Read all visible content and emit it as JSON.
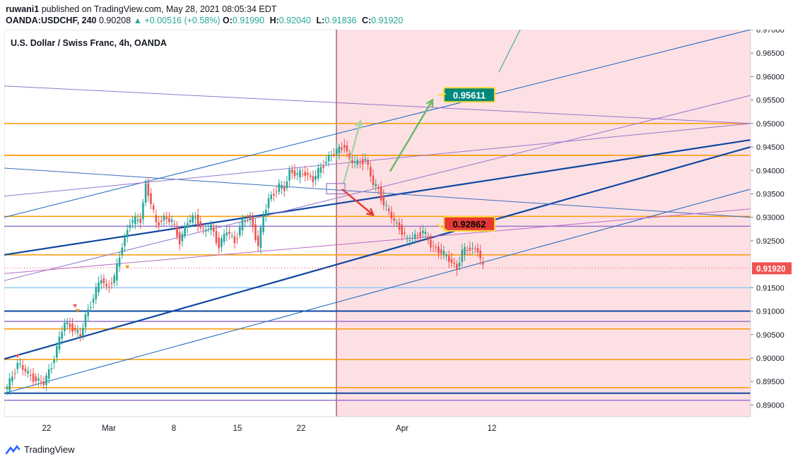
{
  "header": {
    "author": "ruwani1",
    "published_text": "published on TradingView.com, May 28, 2021 08:05:34 EDT",
    "symbol": "OANDA:USDCHF, 240",
    "last": "0.90208",
    "change": "▲ +0.00516 (+0.58%)",
    "open_label": "O:",
    "open": "0.91990",
    "high_label": "H:",
    "high": "0.92040",
    "low_label": "L:",
    "low": "0.91836",
    "close_label": "C:",
    "close": "0.91920"
  },
  "chart_title": "U.S. Dollar / Swiss Franc, 4h, OANDA",
  "footer": {
    "brand": "TradingView"
  },
  "colors": {
    "up": "#26a69a",
    "down": "#ef5350",
    "shade": "#fde0e4",
    "orange": "#ff9800",
    "purple": "#9575cd",
    "navy": "#0d47a1",
    "blue": "#1e5bb5"
  },
  "chart_data": {
    "type": "line",
    "series_kind": "candlestick",
    "ylim": [
      0.8875,
      0.97
    ],
    "y_ticks": [
      "0.97000",
      "0.96500",
      "0.96000",
      "0.95500",
      "0.95000",
      "0.94500",
      "0.94000",
      "0.93500",
      "0.93000",
      "0.92500",
      "0.92000",
      "0.91500",
      "0.91000",
      "0.90500",
      "0.90000",
      "0.89500",
      "0.89000"
    ],
    "x_ticks": [
      "22",
      "Mar",
      "8",
      "15",
      "22",
      "Apr",
      "12"
    ],
    "last_price_label": "0.91920",
    "annotations": [
      {
        "text": "0.95611",
        "value": 0.95611
      },
      {
        "text": "0.92862",
        "value": 0.92862
      }
    ],
    "horizontal_levels": [
      {
        "value": 0.95,
        "color": "orange"
      },
      {
        "value": 0.9432,
        "color": "orange"
      },
      {
        "value": 0.9302,
        "color": "orange"
      },
      {
        "value": 0.9281,
        "color": "purple"
      },
      {
        "value": 0.922,
        "color": "orange"
      },
      {
        "value": 0.915,
        "color": "lightblue"
      },
      {
        "value": 0.91,
        "color": "navy"
      },
      {
        "value": 0.9078,
        "color": "purple"
      },
      {
        "value": 0.9062,
        "color": "orange"
      },
      {
        "value": 0.8997,
        "color": "orange"
      },
      {
        "value": 0.8937,
        "color": "orange"
      },
      {
        "value": 0.8925,
        "color": "navy"
      },
      {
        "value": 0.891,
        "color": "purple"
      }
    ],
    "path": [
      [
        0,
        0.8935
      ],
      [
        4,
        0.899
      ],
      [
        8,
        0.8965
      ],
      [
        11,
        0.8955
      ],
      [
        14,
        0.8945
      ],
      [
        17,
        0.8985
      ],
      [
        20,
        0.904
      ],
      [
        22,
        0.9075
      ],
      [
        25,
        0.9065
      ],
      [
        28,
        0.9045
      ],
      [
        30,
        0.909
      ],
      [
        33,
        0.913
      ],
      [
        36,
        0.917
      ],
      [
        38,
        0.915
      ],
      [
        41,
        0.917
      ],
      [
        44,
        0.924
      ],
      [
        47,
        0.929
      ],
      [
        51,
        0.9295
      ],
      [
        53,
        0.937
      ],
      [
        55,
        0.933
      ],
      [
        57,
        0.9285
      ],
      [
        60,
        0.93
      ],
      [
        63,
        0.929
      ],
      [
        66,
        0.925
      ],
      [
        69,
        0.929
      ],
      [
        72,
        0.93
      ],
      [
        75,
        0.927
      ],
      [
        78,
        0.928
      ],
      [
        81,
        0.924
      ],
      [
        84,
        0.927
      ],
      [
        87,
        0.925
      ],
      [
        90,
        0.929
      ],
      [
        93,
        0.93
      ],
      [
        96,
        0.924
      ],
      [
        98,
        0.93
      ],
      [
        100,
        0.934
      ],
      [
        104,
        0.9365
      ],
      [
        106,
        0.936
      ],
      [
        108,
        0.94
      ],
      [
        111,
        0.939
      ],
      [
        114,
        0.9395
      ],
      [
        117,
        0.938
      ],
      [
        120,
        0.9405
      ],
      [
        123,
        0.943
      ],
      [
        126,
        0.944
      ],
      [
        129,
        0.9455
      ],
      [
        131,
        0.942
      ],
      [
        134,
        0.9415
      ],
      [
        137,
        0.9425
      ],
      [
        140,
        0.937
      ],
      [
        142,
        0.936
      ],
      [
        144,
        0.933
      ],
      [
        146,
        0.931
      ],
      [
        148,
        0.929
      ],
      [
        150,
        0.928
      ],
      [
        153,
        0.925
      ],
      [
        156,
        0.926
      ],
      [
        159,
        0.927
      ],
      [
        162,
        0.924
      ],
      [
        165,
        0.923
      ],
      [
        168,
        0.9215
      ],
      [
        170,
        0.9205
      ],
      [
        172,
        0.9192
      ],
      [
        174,
        0.9225
      ],
      [
        177,
        0.9235
      ],
      [
        180,
        0.923
      ],
      [
        182,
        0.919
      ]
    ]
  }
}
